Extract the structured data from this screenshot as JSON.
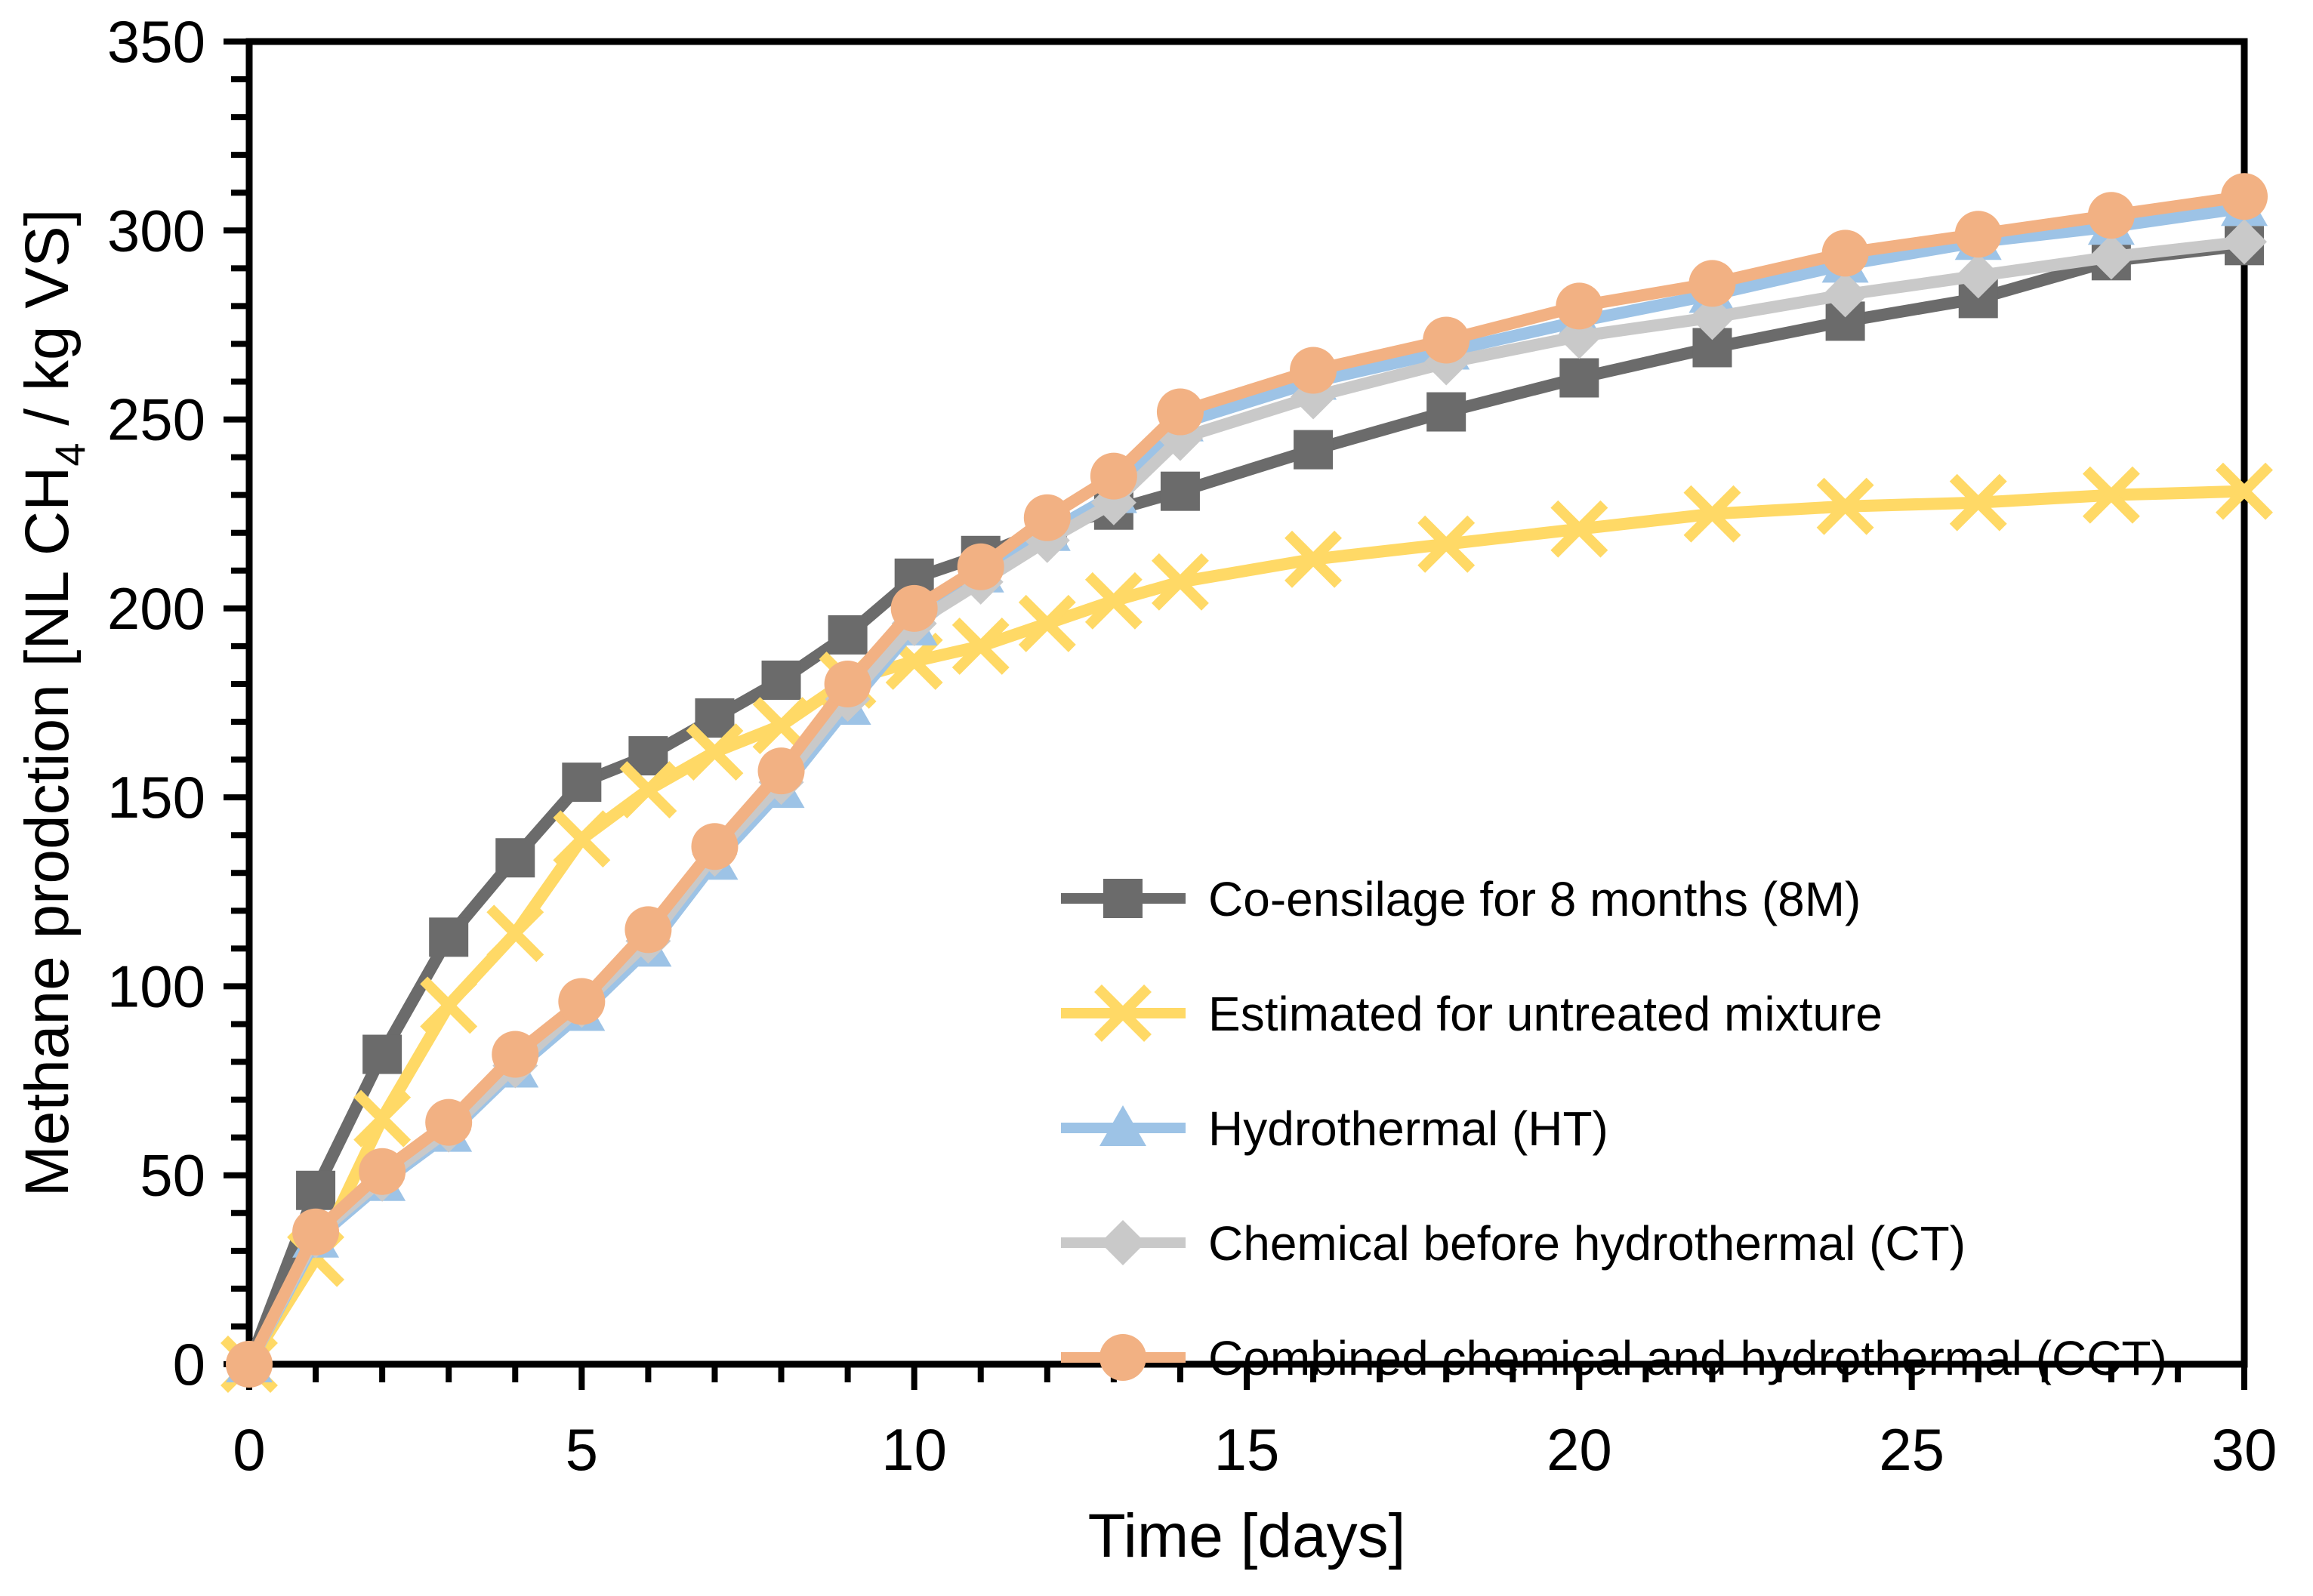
{
  "chart_data": {
    "type": "line",
    "title": "",
    "xlabel": "Time [days]",
    "ylabel": "Methane prodction [NL CH4 / kg VS]",
    "ylabel_parts": {
      "pre": "Methane prodction [NL CH",
      "sub": "4",
      "post": " / kg VS]"
    },
    "xlim": [
      0,
      30
    ],
    "ylim": [
      0,
      350
    ],
    "x_major_ticks": [
      0,
      5,
      10,
      15,
      20,
      25,
      30
    ],
    "x_minor_step": 1,
    "y_major_ticks": [
      0,
      50,
      100,
      150,
      200,
      250,
      300,
      350
    ],
    "y_minor_step": 10,
    "grid": false,
    "legend_position": "inside-right-middle",
    "x": [
      0,
      1,
      2,
      3,
      4,
      5,
      6,
      7,
      8,
      9,
      10,
      11,
      12,
      13,
      14,
      16,
      18,
      20,
      22,
      24,
      26,
      28,
      30
    ],
    "series": [
      {
        "name": "Co-ensilage for 8 months (8M)",
        "marker": "square",
        "color": "#6B6B6B",
        "values": [
          0,
          46,
          82,
          113,
          134,
          154,
          161,
          171,
          181,
          193,
          208,
          214,
          221,
          226,
          231,
          242,
          252,
          261,
          269,
          276,
          282,
          292,
          296
        ]
      },
      {
        "name": "Estimated for untreated mixture",
        "marker": "x",
        "color": "#FFD966",
        "values": [
          0,
          28,
          65,
          95,
          114,
          139,
          152,
          162,
          169,
          181,
          186,
          190,
          196,
          202,
          207,
          213,
          217,
          221,
          225,
          227,
          228,
          230,
          231
        ]
      },
      {
        "name": "Hydrothermal (HT)",
        "marker": "triangle",
        "color": "#9DC3E6",
        "values": [
          0,
          33,
          48,
          61,
          78,
          93,
          110,
          133,
          152,
          174,
          195,
          209,
          220,
          230,
          249,
          260,
          268,
          276,
          283,
          291,
          297,
          301,
          306
        ]
      },
      {
        "name": "Chemical before hydrothermal (CT)",
        "marker": "diamond",
        "color": "#C9C9C9",
        "values": [
          0,
          34,
          49,
          62,
          79,
          95,
          112,
          135,
          154,
          176,
          196,
          207,
          218,
          228,
          245,
          256,
          265,
          272,
          277,
          283,
          288,
          293,
          297
        ]
      },
      {
        "name": "Combined chemical and hydrothermal (CCT)",
        "marker": "circle",
        "color": "#F2B183",
        "values": [
          0,
          35,
          51,
          64,
          82,
          96,
          115,
          137,
          157,
          180,
          200,
          211,
          224,
          235,
          252,
          263,
          271,
          280,
          286,
          294,
          299,
          304,
          309
        ]
      }
    ]
  }
}
